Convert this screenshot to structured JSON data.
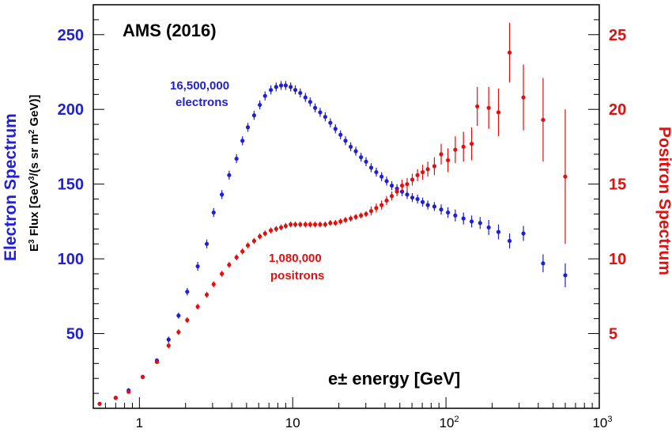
{
  "chart_data": {
    "type": "scatter",
    "title": "AMS (2016)",
    "xlabel": "e± energy [GeV]",
    "xscale": "log",
    "xlim": [
      0.5,
      1000
    ],
    "x_ticks": [
      "1",
      "10",
      "10",
      "10"
    ],
    "x_tick_exponents": [
      "",
      "",
      "2",
      "3"
    ],
    "ylabel_left": "Electron Spectrum",
    "ylabel_left_sub": "E3 Flux [GeV3/(s sr m2 GeV)]",
    "ylim_left": [
      0,
      270
    ],
    "y_ticks_left": [
      "50",
      "100",
      "150",
      "200",
      "250"
    ],
    "ylabel_right": "Positron Spectrum",
    "ylim_right": [
      0,
      27
    ],
    "y_ticks_right": [
      "5",
      "10",
      "15",
      "20",
      "25"
    ],
    "colors": {
      "electrons": "#1f1fd6",
      "positrons": "#e01010"
    },
    "annotations": {
      "electrons_count": "16,500,000",
      "electrons_word": "electrons",
      "positrons_count": "1,080,000",
      "positrons_word": "positrons"
    },
    "series": [
      {
        "axis": "left",
        "color": "#1f1fd6",
        "points": [
          [
            0.55,
            3,
            1
          ],
          [
            0.7,
            7,
            1
          ],
          [
            0.85,
            12,
            1.5
          ],
          [
            1.05,
            21,
            1.5
          ],
          [
            1.3,
            32,
            1.5
          ],
          [
            1.55,
            46,
            2
          ],
          [
            1.8,
            62,
            2
          ],
          [
            2.05,
            78,
            2.5
          ],
          [
            2.4,
            95,
            3
          ],
          [
            2.75,
            110,
            3
          ],
          [
            3.05,
            131,
            3
          ],
          [
            3.45,
            143,
            3
          ],
          [
            3.85,
            156,
            3
          ],
          [
            4.3,
            167,
            3
          ],
          [
            4.7,
            179,
            3
          ],
          [
            5.1,
            188,
            3
          ],
          [
            5.6,
            196,
            3
          ],
          [
            6.1,
            203,
            3
          ],
          [
            6.6,
            209,
            3
          ],
          [
            7.2,
            213,
            3
          ],
          [
            7.8,
            215,
            3
          ],
          [
            8.4,
            216,
            3
          ],
          [
            9.0,
            216,
            3
          ],
          [
            9.7,
            215,
            3
          ],
          [
            10.4,
            213,
            3
          ],
          [
            11.2,
            211,
            3
          ],
          [
            12.1,
            208,
            3
          ],
          [
            13.0,
            205,
            3
          ],
          [
            14.0,
            201,
            3
          ],
          [
            15.1,
            198,
            3
          ],
          [
            16.3,
            195,
            3
          ],
          [
            17.6,
            191,
            3
          ],
          [
            19.0,
            187,
            3
          ],
          [
            20.5,
            183,
            3
          ],
          [
            22.1,
            179,
            3
          ],
          [
            23.9,
            175,
            3
          ],
          [
            25.8,
            172,
            3
          ],
          [
            27.9,
            168,
            3
          ],
          [
            30.1,
            165,
            3
          ],
          [
            32.5,
            161,
            3
          ],
          [
            35.1,
            158,
            3
          ],
          [
            38.0,
            155,
            3
          ],
          [
            41.0,
            152,
            3
          ],
          [
            44.3,
            149,
            3
          ],
          [
            47.9,
            147,
            3
          ],
          [
            51.7,
            145,
            3
          ],
          [
            55.8,
            143,
            3
          ],
          [
            60.3,
            141,
            3
          ],
          [
            65.2,
            140,
            3
          ],
          [
            70.4,
            138,
            3
          ],
          [
            76.1,
            136,
            3
          ],
          [
            84,
            135,
            3
          ],
          [
            93,
            133,
            3.5
          ],
          [
            103,
            131,
            3.5
          ],
          [
            115,
            129,
            4
          ],
          [
            130,
            127,
            4
          ],
          [
            147,
            125,
            4
          ],
          [
            167,
            124,
            4
          ],
          [
            190,
            121,
            5
          ],
          [
            220,
            118,
            5
          ],
          [
            260,
            112,
            5
          ],
          [
            320,
            117,
            5
          ],
          [
            430,
            97,
            6
          ],
          [
            600,
            89,
            8
          ]
        ]
      },
      {
        "axis": "right",
        "color": "#e01010",
        "points": [
          [
            0.55,
            0.3,
            0.1
          ],
          [
            0.7,
            0.7,
            0.1
          ],
          [
            0.85,
            1.1,
            0.1
          ],
          [
            1.05,
            2.1,
            0.1
          ],
          [
            1.3,
            3.1,
            0.1
          ],
          [
            1.55,
            4.2,
            0.2
          ],
          [
            1.8,
            5.1,
            0.2
          ],
          [
            2.05,
            5.9,
            0.2
          ],
          [
            2.4,
            6.8,
            0.2
          ],
          [
            2.75,
            7.6,
            0.2
          ],
          [
            3.05,
            8.3,
            0.2
          ],
          [
            3.45,
            9.0,
            0.2
          ],
          [
            3.85,
            9.6,
            0.2
          ],
          [
            4.3,
            10.1,
            0.2
          ],
          [
            4.7,
            10.5,
            0.2
          ],
          [
            5.1,
            10.9,
            0.2
          ],
          [
            5.6,
            11.2,
            0.2
          ],
          [
            6.1,
            11.5,
            0.2
          ],
          [
            6.6,
            11.7,
            0.2
          ],
          [
            7.2,
            11.9,
            0.2
          ],
          [
            7.8,
            12.0,
            0.2
          ],
          [
            8.4,
            12.1,
            0.2
          ],
          [
            9.0,
            12.2,
            0.2
          ],
          [
            9.7,
            12.3,
            0.2
          ],
          [
            10.4,
            12.3,
            0.2
          ],
          [
            11.2,
            12.3,
            0.2
          ],
          [
            12.1,
            12.3,
            0.2
          ],
          [
            13.0,
            12.3,
            0.2
          ],
          [
            14.0,
            12.3,
            0.2
          ],
          [
            15.1,
            12.3,
            0.2
          ],
          [
            16.3,
            12.3,
            0.2
          ],
          [
            17.6,
            12.4,
            0.2
          ],
          [
            19.0,
            12.4,
            0.2
          ],
          [
            20.5,
            12.5,
            0.2
          ],
          [
            22.1,
            12.6,
            0.2
          ],
          [
            23.9,
            12.7,
            0.2
          ],
          [
            25.8,
            12.8,
            0.2
          ],
          [
            27.9,
            12.9,
            0.2
          ],
          [
            30.1,
            13.0,
            0.2
          ],
          [
            32.5,
            13.2,
            0.3
          ],
          [
            35.1,
            13.4,
            0.3
          ],
          [
            38.0,
            13.6,
            0.3
          ],
          [
            41.0,
            13.9,
            0.3
          ],
          [
            44.3,
            14.2,
            0.3
          ],
          [
            47.9,
            14.5,
            0.3
          ],
          [
            51.7,
            14.9,
            0.4
          ],
          [
            55.8,
            15.0,
            0.4
          ],
          [
            60.3,
            15.3,
            0.4
          ],
          [
            65.2,
            15.6,
            0.4
          ],
          [
            70.4,
            15.8,
            0.5
          ],
          [
            76.1,
            16.0,
            0.5
          ],
          [
            84,
            16.2,
            0.6
          ],
          [
            93,
            17.0,
            0.7
          ],
          [
            103,
            16.6,
            0.8
          ],
          [
            115,
            17.3,
            0.9
          ],
          [
            130,
            17.5,
            1.0
          ],
          [
            147,
            17.7,
            1.1
          ],
          [
            160,
            20.2,
            1.3
          ],
          [
            190,
            20.1,
            1.4
          ],
          [
            220,
            19.8,
            1.6
          ],
          [
            260,
            23.8,
            2.0
          ],
          [
            320,
            20.8,
            2.2
          ],
          [
            430,
            19.3,
            2.8
          ],
          [
            600,
            15.5,
            4.5
          ]
        ]
      }
    ]
  }
}
